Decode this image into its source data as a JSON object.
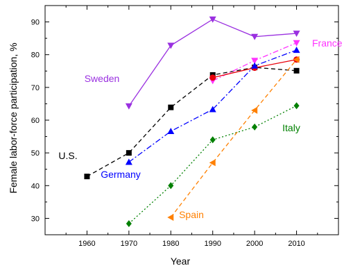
{
  "chart_data": {
    "type": "line",
    "xlabel": "Year",
    "ylabel": "Female labor-force participation, %",
    "xlim": [
      1950,
      2020
    ],
    "ylim": [
      25,
      95
    ],
    "x_ticks": [
      1960,
      1970,
      1980,
      1990,
      2000,
      2010
    ],
    "y_ticks": [
      30,
      40,
      50,
      60,
      70,
      80,
      90
    ],
    "grid": false,
    "legend": "none",
    "series": [
      {
        "name": "U.S.",
        "color": "#000000",
        "dash": "dashed",
        "marker": "square",
        "x": [
          1960,
          1970,
          1980,
          1990,
          2000,
          2010
        ],
        "y": [
          42.8,
          50.0,
          63.9,
          73.8,
          76.1,
          75.1
        ]
      },
      {
        "name": "Sweden",
        "color": "#9a30e0",
        "dash": "solid",
        "marker": "triangle-down",
        "x": [
          1970,
          1980,
          1990,
          2000,
          2010
        ],
        "y": [
          64.3,
          82.8,
          90.8,
          85.5,
          86.5
        ]
      },
      {
        "name": "France",
        "color": "#ff33ff",
        "dash": "dashdot",
        "marker": "triangle-down",
        "x": [
          1990,
          2000,
          2010
        ],
        "y": [
          72.0,
          78.2,
          83.6
        ]
      },
      {
        "name": "",
        "color": "#e8000b",
        "dash": "solid",
        "marker": "circle",
        "x": [
          1990,
          2000,
          2010
        ],
        "y": [
          73.0,
          76.0,
          78.5
        ]
      },
      {
        "name": "Germany",
        "color": "#0000ff",
        "dash": "dashdot",
        "marker": "triangle-up",
        "x": [
          1970,
          1980,
          1990,
          2000,
          2010
        ],
        "y": [
          47.2,
          56.6,
          63.3,
          76.6,
          81.4
        ]
      },
      {
        "name": "Italy",
        "color": "#008000",
        "dash": "dotted",
        "marker": "diamond",
        "x": [
          1970,
          1980,
          1990,
          2000,
          2010
        ],
        "y": [
          28.4,
          40.0,
          54.0,
          57.9,
          64.4
        ]
      },
      {
        "name": "Spain",
        "color": "#ff8000",
        "dash": "dashed",
        "marker": "triangle-left",
        "x": [
          1980,
          1990,
          2000,
          2010
        ],
        "y": [
          30.3,
          47.0,
          63.0,
          78.5
        ]
      }
    ],
    "annotations": [
      {
        "series": "U.S.",
        "text": "U.S."
      },
      {
        "series": "Sweden",
        "text": "Sweden"
      },
      {
        "series": "France",
        "text": "France"
      },
      {
        "series": "Germany",
        "text": "Germany"
      },
      {
        "series": "Italy",
        "text": "Italy"
      },
      {
        "series": "Spain",
        "text": "Spain"
      }
    ]
  }
}
